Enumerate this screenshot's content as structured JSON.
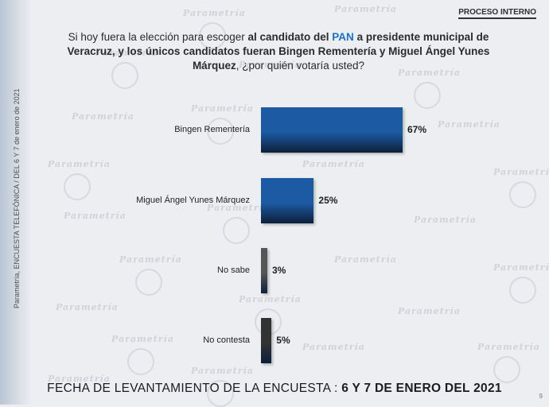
{
  "header": {
    "proceso": "PROCESO INTERNO"
  },
  "side_note": "Parametría, ENCUESTA TELEFÓNICA / DEL 6 Y 7 de enero de 2021",
  "watermark": "Parametría",
  "question": {
    "part1": "Si hoy fuera la elección para escoger ",
    "part2": "al candidato del ",
    "part3": "PAN",
    "part4": " a presidente municipal de Veracruz, y los únicos candidatos fueran Bingen Rementería y Miguel Ángel Yunes Márquez",
    "part5": ", ¿por quién votaría usted?"
  },
  "chart_data": {
    "type": "bar",
    "orientation": "horizontal",
    "categories": [
      "Bingen Rementería",
      "Miguel Ángel Yunes Márquez",
      "No sabe",
      "No contesta"
    ],
    "values": [
      67,
      25,
      3,
      5
    ],
    "labels": [
      "67%",
      "25%",
      "3%",
      "5%"
    ],
    "colors": [
      "#1c5aa3",
      "#1c5aa3",
      "#555555",
      "#333333"
    ]
  },
  "footer": {
    "prefix": "FECHA DE LEVANTAMIENTO DE LA ENCUESTA :",
    "date": "6 Y 7 DE ENERO DEL 2021"
  },
  "page_number": "9"
}
